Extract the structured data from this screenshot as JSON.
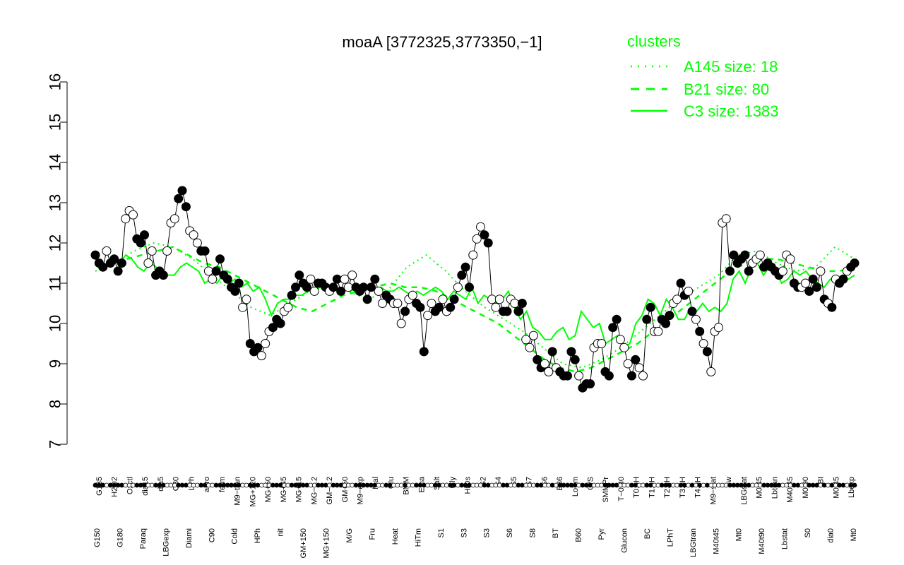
{
  "chart_data": {
    "type": "line",
    "title": "moaA [3772325,3773350,−1]",
    "xlabel": "",
    "ylabel": "",
    "ylim": [
      7,
      16
    ],
    "yticks": [
      7,
      8,
      9,
      10,
      11,
      12,
      13,
      14,
      15,
      16
    ],
    "colors": {
      "cluster_line": "#00ff00",
      "point_dark": "#000000",
      "point_light": "#ffffff",
      "axis": "#000000"
    },
    "legend": {
      "title": "clusters",
      "placement": "top-right",
      "entries": [
        {
          "label": "A145 size: 18",
          "style": "dotted"
        },
        {
          "label": "B21 size: 80",
          "style": "dashed"
        },
        {
          "label": "C3 size: 1383",
          "style": "solid"
        }
      ]
    },
    "x_labels_upper": [
      "G135",
      "H2O2",
      "Oxctl",
      "dia15",
      "dia5",
      "C30",
      "LPh",
      "aero",
      "ferm",
      "M9−tran",
      "MG+120",
      "MG+60",
      "MG+45",
      "MG+15",
      "MG−0.2",
      "GM−0.2",
      "GM+60",
      "M9−exp",
      "Mal",
      "Glu",
      "BMM",
      "Etha",
      "Salt",
      "Gly",
      "HiOs",
      "S2",
      "S4",
      "S5",
      "S7",
      "S6",
      "B36",
      "LoTm",
      "G/S",
      "SMMPr",
      "T−0.40",
      "T0.0H",
      "T1.0H",
      "T2.0H",
      "T3.0H",
      "T4.0H",
      "M9−stat",
      "Sw",
      "LBGstat",
      "M0t45",
      "Lbtran",
      "M40t45",
      "M0t90",
      "BI",
      "M0t45",
      "Lbexp"
    ],
    "x_labels_lower": [
      "G150",
      "G180",
      "Paraq",
      "LBGexp",
      "Diami",
      "C90",
      "Cold",
      "HPh",
      "nit",
      "GM+150",
      "MG+150",
      "M/G",
      "Fru",
      "Heat",
      "HiTm",
      "S1",
      "S3",
      "S3",
      "S6",
      "S8",
      "BT",
      "B60",
      "Pyr",
      "Glucon",
      "BC",
      "LPhT",
      "LBGtran",
      "M40t45",
      "Mt0",
      "M40t90",
      "Lbstat",
      "S0",
      "dia0",
      "Mt0"
    ],
    "series": [
      {
        "name": "C3 size: 1383",
        "style": "solid",
        "values": [
          11.6,
          11.5,
          11.4,
          11.5,
          11.5,
          11.7,
          11.6,
          11.4,
          11.3,
          11.5,
          11.4,
          11.3,
          11.2,
          11.2,
          11.4,
          11.5,
          11.4,
          11.3,
          11.0,
          11.1,
          11.0,
          11.2,
          11.0,
          11.1,
          10.9,
          11.0,
          10.8,
          10.9,
          10.6,
          10.2,
          10.5,
          10.6,
          10.6,
          10.7,
          10.7,
          10.8,
          10.8,
          10.9,
          10.8,
          10.9,
          10.8,
          10.9,
          10.8,
          10.9,
          10.8,
          10.9,
          10.8,
          10.9,
          10.8,
          10.8,
          10.9,
          10.8,
          10.7,
          10.8,
          10.7,
          10.8,
          10.9,
          10.8,
          10.6,
          10.8,
          10.7,
          10.6,
          10.9,
          10.5,
          10.7,
          10.6,
          10.5,
          10.6,
          10.8,
          10.4,
          10.1,
          10.3,
          9.9,
          9.8,
          9.6,
          9.6,
          9.8,
          9.9,
          9.6,
          9.7,
          10.3,
          10.1,
          9.9,
          10.0,
          9.5,
          9.6,
          9.7,
          9.4,
          9.5,
          10.0,
          10.2,
          10.6,
          10.5,
          10.2,
          10.6,
          10.4,
          10.1,
          10.1,
          10.4,
          10.3,
          10.5,
          10.3,
          10.4,
          10.3,
          10.5,
          11.1,
          11.3,
          11.0,
          11.4,
          11.5,
          11.2,
          11.4,
          11.3,
          11.0,
          11.1,
          11.3,
          11.2,
          11.3,
          11.1,
          11.0,
          10.9,
          11.1,
          11.0,
          11.2,
          11.1,
          11.2
        ]
      },
      {
        "name": "B21 size: 80",
        "style": "dashed",
        "values": [
          11.5,
          11.5,
          11.6,
          11.7,
          11.8,
          11.9,
          11.7,
          11.5,
          11.4,
          11.2,
          11.0,
          10.8,
          10.6,
          10.4,
          10.3,
          10.5,
          10.7,
          10.8,
          10.9,
          11.0,
          10.9,
          10.9,
          10.8,
          10.6,
          10.4,
          10.2,
          10.0,
          9.7,
          9.4,
          9.1,
          8.9,
          8.8,
          8.9,
          9.1,
          9.3,
          9.5,
          9.8,
          10.1,
          10.4,
          10.7,
          11.0,
          11.3,
          11.5,
          11.6,
          11.6,
          11.5,
          11.4,
          11.3,
          11.3,
          11.4
        ]
      },
      {
        "name": "A145 size: 18",
        "style": "dotted",
        "values": [
          11.3,
          11.5,
          11.8,
          12.0,
          11.9,
          11.6,
          11.2,
          10.8,
          10.4,
          10.2,
          10.5,
          10.8,
          10.9,
          10.8,
          10.6,
          10.8,
          11.4,
          11.7,
          11.3,
          10.8,
          10.4,
          10.1,
          9.8,
          9.4,
          9.0,
          8.9,
          9.1,
          9.4,
          9.8,
          10.2,
          10.6,
          10.9,
          11.2,
          11.7,
          11.8,
          11.5,
          11.3,
          11.4,
          11.9,
          11.6
        ]
      }
    ],
    "points": [
      [
        11.7,
        1
      ],
      [
        11.5,
        1
      ],
      [
        11.4,
        1
      ],
      [
        11.8,
        0
      ],
      [
        11.5,
        1
      ],
      [
        11.6,
        1
      ],
      [
        11.3,
        1
      ],
      [
        11.5,
        1
      ],
      [
        12.6,
        0
      ],
      [
        12.8,
        0
      ],
      [
        12.7,
        0
      ],
      [
        12.1,
        1
      ],
      [
        12.0,
        1
      ],
      [
        12.2,
        1
      ],
      [
        11.5,
        0
      ],
      [
        11.8,
        0
      ],
      [
        11.2,
        1
      ],
      [
        11.3,
        1
      ],
      [
        11.2,
        1
      ],
      [
        11.8,
        0
      ],
      [
        12.5,
        0
      ],
      [
        12.6,
        0
      ],
      [
        13.1,
        1
      ],
      [
        13.3,
        1
      ],
      [
        12.9,
        1
      ],
      [
        12.3,
        0
      ],
      [
        12.2,
        0
      ],
      [
        12.0,
        0
      ],
      [
        11.8,
        1
      ],
      [
        11.8,
        1
      ],
      [
        11.3,
        0
      ],
      [
        11.1,
        0
      ],
      [
        11.3,
        1
      ],
      [
        11.6,
        1
      ],
      [
        11.2,
        1
      ],
      [
        11.1,
        1
      ],
      [
        10.9,
        1
      ],
      [
        10.8,
        1
      ],
      [
        11.0,
        1
      ],
      [
        10.4,
        0
      ],
      [
        10.6,
        0
      ],
      [
        9.5,
        1
      ],
      [
        9.3,
        1
      ],
      [
        9.4,
        1
      ],
      [
        9.2,
        0
      ],
      [
        9.5,
        0
      ],
      [
        9.8,
        0
      ],
      [
        9.9,
        1
      ],
      [
        10.1,
        1
      ],
      [
        10.0,
        1
      ],
      [
        10.3,
        0
      ],
      [
        10.4,
        0
      ],
      [
        10.7,
        1
      ],
      [
        10.9,
        1
      ],
      [
        11.2,
        1
      ],
      [
        11.0,
        1
      ],
      [
        10.9,
        1
      ],
      [
        11.1,
        0
      ],
      [
        10.8,
        0
      ],
      [
        11.0,
        1
      ],
      [
        11.0,
        1
      ],
      [
        10.9,
        1
      ],
      [
        10.8,
        0
      ],
      [
        10.9,
        1
      ],
      [
        11.1,
        1
      ],
      [
        10.8,
        1
      ],
      [
        11.1,
        0
      ],
      [
        10.9,
        0
      ],
      [
        11.2,
        0
      ],
      [
        10.9,
        1
      ],
      [
        10.8,
        1
      ],
      [
        10.9,
        1
      ],
      [
        10.6,
        1
      ],
      [
        10.9,
        1
      ],
      [
        11.1,
        1
      ],
      [
        10.8,
        0
      ],
      [
        10.5,
        0
      ],
      [
        10.7,
        1
      ],
      [
        10.6,
        1
      ],
      [
        10.5,
        0
      ],
      [
        10.5,
        0
      ],
      [
        10.0,
        0
      ],
      [
        10.3,
        1
      ],
      [
        10.6,
        0
      ],
      [
        10.7,
        0
      ],
      [
        10.5,
        1
      ],
      [
        10.4,
        1
      ],
      [
        9.3,
        1
      ],
      [
        10.2,
        0
      ],
      [
        10.5,
        0
      ],
      [
        10.3,
        1
      ],
      [
        10.4,
        1
      ],
      [
        10.6,
        0
      ],
      [
        10.3,
        0
      ],
      [
        10.4,
        1
      ],
      [
        10.6,
        1
      ],
      [
        10.9,
        0
      ],
      [
        11.2,
        1
      ],
      [
        11.4,
        1
      ],
      [
        10.9,
        1
      ],
      [
        11.7,
        0
      ],
      [
        12.1,
        0
      ],
      [
        12.4,
        0
      ],
      [
        12.2,
        1
      ],
      [
        12.0,
        1
      ],
      [
        10.6,
        0
      ],
      [
        10.4,
        0
      ],
      [
        10.6,
        0
      ],
      [
        10.3,
        1
      ],
      [
        10.3,
        1
      ],
      [
        10.6,
        0
      ],
      [
        10.5,
        0
      ],
      [
        10.3,
        1
      ],
      [
        10.5,
        1
      ],
      [
        9.6,
        0
      ],
      [
        9.4,
        0
      ],
      [
        9.7,
        0
      ],
      [
        9.1,
        1
      ],
      [
        8.9,
        1
      ],
      [
        9.0,
        0
      ],
      [
        8.8,
        0
      ],
      [
        9.3,
        1
      ],
      [
        8.9,
        0
      ],
      [
        8.8,
        1
      ],
      [
        8.7,
        1
      ],
      [
        8.7,
        1
      ],
      [
        9.3,
        1
      ],
      [
        9.1,
        1
      ],
      [
        8.7,
        0
      ],
      [
        8.4,
        1
      ],
      [
        8.5,
        1
      ],
      [
        8.5,
        1
      ],
      [
        9.4,
        0
      ],
      [
        9.5,
        0
      ],
      [
        9.5,
        0
      ],
      [
        8.8,
        1
      ],
      [
        8.7,
        1
      ],
      [
        9.9,
        1
      ],
      [
        10.1,
        1
      ],
      [
        9.6,
        0
      ],
      [
        9.4,
        0
      ],
      [
        9.0,
        0
      ],
      [
        8.7,
        1
      ],
      [
        9.1,
        1
      ],
      [
        8.9,
        0
      ],
      [
        8.7,
        0
      ],
      [
        10.1,
        1
      ],
      [
        10.4,
        1
      ],
      [
        9.8,
        0
      ],
      [
        9.8,
        0
      ],
      [
        10.1,
        1
      ],
      [
        10.0,
        1
      ],
      [
        10.2,
        1
      ],
      [
        10.5,
        0
      ],
      [
        10.6,
        0
      ],
      [
        11.0,
        1
      ],
      [
        10.7,
        1
      ],
      [
        10.8,
        0
      ],
      [
        10.3,
        1
      ],
      [
        10.1,
        0
      ],
      [
        9.8,
        1
      ],
      [
        9.5,
        0
      ],
      [
        9.3,
        1
      ],
      [
        8.8,
        0
      ],
      [
        9.8,
        0
      ],
      [
        9.9,
        0
      ],
      [
        12.5,
        0
      ],
      [
        12.6,
        0
      ],
      [
        11.3,
        1
      ],
      [
        11.7,
        1
      ],
      [
        11.5,
        1
      ],
      [
        11.6,
        1
      ],
      [
        11.7,
        1
      ],
      [
        11.3,
        1
      ],
      [
        11.5,
        0
      ],
      [
        11.6,
        0
      ],
      [
        11.7,
        0
      ],
      [
        11.4,
        1
      ],
      [
        11.5,
        1
      ],
      [
        11.4,
        1
      ],
      [
        11.3,
        1
      ],
      [
        11.2,
        1
      ],
      [
        11.3,
        0
      ],
      [
        11.7,
        0
      ],
      [
        11.6,
        0
      ],
      [
        11.0,
        1
      ],
      [
        10.9,
        1
      ],
      [
        10.9,
        0
      ],
      [
        11.0,
        0
      ],
      [
        10.8,
        1
      ],
      [
        11.1,
        1
      ],
      [
        10.9,
        1
      ],
      [
        11.3,
        0
      ],
      [
        10.6,
        1
      ],
      [
        10.5,
        0
      ],
      [
        10.4,
        1
      ],
      [
        11.1,
        0
      ],
      [
        11.0,
        1
      ],
      [
        11.1,
        1
      ],
      [
        11.3,
        0
      ],
      [
        11.4,
        1
      ],
      [
        11.5,
        1
      ]
    ]
  }
}
